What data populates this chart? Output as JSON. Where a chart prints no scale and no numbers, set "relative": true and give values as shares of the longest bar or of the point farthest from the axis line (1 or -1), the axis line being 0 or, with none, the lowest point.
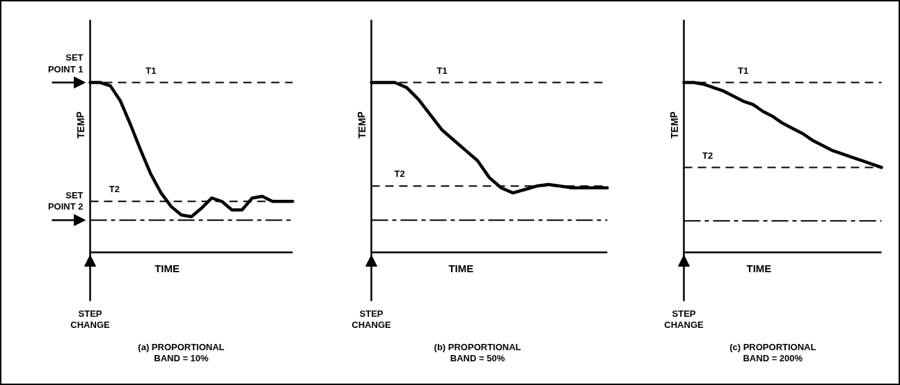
{
  "chart_data": [
    {
      "type": "line",
      "title": "(a) PROPORTIONAL\nBAND = 10%",
      "xlabel": "TIME",
      "ylabel": "TEMP",
      "relative": true,
      "grid": false,
      "marker": "none",
      "line_style": "solid",
      "categories": [
        null,
        null,
        null,
        null,
        null,
        null,
        null,
        null,
        null,
        null,
        null,
        null,
        null,
        null,
        null,
        null,
        null,
        null,
        null,
        null,
        null
      ],
      "series": [
        {
          "color": "#000000",
          "values": [
            1.0,
            1.0,
            0.98,
            0.89,
            0.75,
            0.6,
            0.46,
            0.35,
            0.27,
            0.22,
            0.21,
            0.26,
            0.32,
            0.3,
            0.25,
            0.25,
            0.32,
            0.33,
            0.3,
            0.3,
            0.3
          ]
        }
      ],
      "ref_lines": [
        {
          "axis": "y",
          "value": 1.0,
          "label": "T1",
          "line_style": "dashed"
        },
        {
          "axis": "y",
          "value": 0.3,
          "label": "T2",
          "line_style": "dashed"
        },
        {
          "axis": "y",
          "value": 0.19,
          "label": null,
          "line_style": "dashdot"
        }
      ],
      "annotations": [
        "SET\nPOINT 1",
        "SET\nPOINT 2",
        "STEP\nCHANGE"
      ]
    },
    {
      "type": "line",
      "title": "(b) PROPORTIONAL\nBAND = 50%",
      "xlabel": "TIME",
      "ylabel": "TEMP",
      "relative": true,
      "grid": false,
      "marker": "none",
      "line_style": "solid",
      "categories": [
        null,
        null,
        null,
        null,
        null,
        null,
        null,
        null,
        null,
        null,
        null,
        null,
        null,
        null,
        null,
        null,
        null,
        null,
        null,
        null,
        null
      ],
      "series": [
        {
          "color": "#000000",
          "values": [
            1.0,
            1.0,
            1.0,
            0.97,
            0.9,
            0.81,
            0.72,
            0.66,
            0.6,
            0.54,
            0.44,
            0.38,
            0.35,
            0.37,
            0.39,
            0.4,
            0.39,
            0.38,
            0.38,
            0.38,
            0.38
          ]
        }
      ],
      "ref_lines": [
        {
          "axis": "y",
          "value": 1.0,
          "label": "T1",
          "line_style": "dashed"
        },
        {
          "axis": "y",
          "value": 0.39,
          "label": "T2",
          "line_style": "dashed"
        },
        {
          "axis": "y",
          "value": 0.19,
          "label": null,
          "line_style": "dashdot"
        }
      ],
      "annotations": [
        "STEP\nCHANGE"
      ]
    },
    {
      "type": "line",
      "title": "(c) PROPORTIONAL\nBAND = 200%",
      "xlabel": "TIME",
      "ylabel": "TEMP",
      "relative": true,
      "grid": false,
      "marker": "none",
      "line_style": "solid",
      "categories": [
        null,
        null,
        null,
        null,
        null,
        null,
        null,
        null,
        null,
        null,
        null,
        null,
        null,
        null,
        null,
        null,
        null,
        null,
        null,
        null,
        null
      ],
      "series": [
        {
          "color": "#000000",
          "values": [
            1.0,
            1.0,
            0.99,
            0.97,
            0.95,
            0.92,
            0.89,
            0.87,
            0.83,
            0.8,
            0.76,
            0.73,
            0.7,
            0.66,
            0.63,
            0.6,
            0.58,
            0.56,
            0.54,
            0.52,
            0.5
          ]
        }
      ],
      "ref_lines": [
        {
          "axis": "y",
          "value": 1.0,
          "label": "T1",
          "line_style": "dashed"
        },
        {
          "axis": "y",
          "value": 0.5,
          "label": "T2",
          "line_style": "dashed"
        },
        {
          "axis": "y",
          "value": 0.185,
          "label": null,
          "line_style": "dashdot"
        }
      ],
      "annotations": [
        "STEP\nCHANGE"
      ]
    }
  ]
}
